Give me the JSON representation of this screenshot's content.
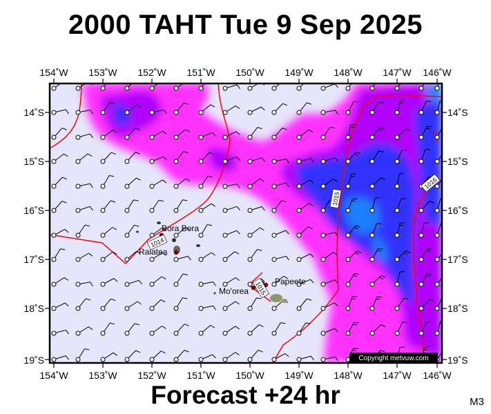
{
  "header": {
    "title": "2000 TAHT Tue 9 Sep 2025"
  },
  "footer": {
    "forecast_label": "Forecast +24 hr",
    "model_code": "M3"
  },
  "map": {
    "lon_labels": [
      "154˚W",
      "153˚W",
      "152˚W",
      "151˚W",
      "150˚W",
      "149˚W",
      "148˚W",
      "147˚W",
      "146˚W"
    ],
    "lat_labels": [
      "14˚S",
      "15˚S",
      "16˚S",
      "17˚S",
      "18˚S",
      "19˚S"
    ],
    "places": [
      {
        "name": "Bora Bora"
      },
      {
        "name": "Raiatea"
      },
      {
        "name": "Mo'orea"
      },
      {
        "name": "Papeete"
      }
    ],
    "isobar_labels": [
      "1014",
      "1015",
      "1016",
      "1015"
    ],
    "copyright": "Copyright metvuw.com",
    "colors": {
      "background": "#e6e6fa",
      "precip_light": "#ff00ff",
      "precip_medium": "#9900ff",
      "precip_heavy": "#2020ff",
      "precip_extreme": "#0066ff",
      "isobar": "#ff0000",
      "land": "#8b0000"
    },
    "wind_barbs": true
  }
}
